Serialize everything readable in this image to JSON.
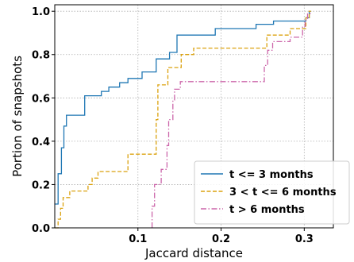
{
  "chart_data": {
    "type": "line",
    "xlabel": "Jaccard distance",
    "ylabel": "Portion of snapshots",
    "xlim": [
      0.0,
      0.335
    ],
    "ylim": [
      0.0,
      1.03
    ],
    "xticks": [
      {
        "value": 0.1,
        "label": "0.1"
      },
      {
        "value": 0.2,
        "label": "0.2"
      },
      {
        "value": 0.3,
        "label": "0.3"
      }
    ],
    "yticks": [
      {
        "value": 0.0,
        "label": "0.0"
      },
      {
        "value": 0.2,
        "label": "0.2"
      },
      {
        "value": 0.4,
        "label": "0.4"
      },
      {
        "value": 0.6,
        "label": "0.6"
      },
      {
        "value": 0.8,
        "label": "0.8"
      },
      {
        "value": 1.0,
        "label": "1.0"
      }
    ],
    "grid": true,
    "legend_position": "bottom-right",
    "series": [
      {
        "name": "t <= 3 months",
        "color": "#1f77b4",
        "style": "solid",
        "points": [
          [
            0.0,
            0.11
          ],
          [
            0.004,
            0.11
          ],
          [
            0.004,
            0.25
          ],
          [
            0.008,
            0.25
          ],
          [
            0.008,
            0.37
          ],
          [
            0.011,
            0.37
          ],
          [
            0.011,
            0.47
          ],
          [
            0.014,
            0.47
          ],
          [
            0.014,
            0.52
          ],
          [
            0.036,
            0.52
          ],
          [
            0.036,
            0.61
          ],
          [
            0.056,
            0.61
          ],
          [
            0.056,
            0.63
          ],
          [
            0.065,
            0.63
          ],
          [
            0.065,
            0.65
          ],
          [
            0.078,
            0.65
          ],
          [
            0.078,
            0.67
          ],
          [
            0.088,
            0.67
          ],
          [
            0.088,
            0.69
          ],
          [
            0.105,
            0.69
          ],
          [
            0.105,
            0.72
          ],
          [
            0.122,
            0.72
          ],
          [
            0.122,
            0.78
          ],
          [
            0.138,
            0.78
          ],
          [
            0.138,
            0.81
          ],
          [
            0.147,
            0.81
          ],
          [
            0.147,
            0.89
          ],
          [
            0.193,
            0.89
          ],
          [
            0.193,
            0.92
          ],
          [
            0.242,
            0.92
          ],
          [
            0.242,
            0.94
          ],
          [
            0.263,
            0.94
          ],
          [
            0.263,
            0.955
          ],
          [
            0.302,
            0.955
          ],
          [
            0.302,
            0.97
          ],
          [
            0.306,
            0.97
          ],
          [
            0.306,
            1.0
          ],
          [
            0.308,
            1.0
          ]
        ]
      },
      {
        "name": "3 < t <= 6 months",
        "color": "#dba20f",
        "style": "dashed",
        "points": [
          [
            0.0,
            0.0
          ],
          [
            0.004,
            0.0
          ],
          [
            0.004,
            0.04
          ],
          [
            0.007,
            0.04
          ],
          [
            0.007,
            0.09
          ],
          [
            0.01,
            0.09
          ],
          [
            0.01,
            0.14
          ],
          [
            0.018,
            0.14
          ],
          [
            0.018,
            0.17
          ],
          [
            0.04,
            0.17
          ],
          [
            0.04,
            0.2
          ],
          [
            0.045,
            0.2
          ],
          [
            0.045,
            0.23
          ],
          [
            0.052,
            0.23
          ],
          [
            0.052,
            0.26
          ],
          [
            0.088,
            0.26
          ],
          [
            0.088,
            0.34
          ],
          [
            0.122,
            0.34
          ],
          [
            0.122,
            0.5
          ],
          [
            0.124,
            0.5
          ],
          [
            0.124,
            0.66
          ],
          [
            0.136,
            0.66
          ],
          [
            0.136,
            0.74
          ],
          [
            0.152,
            0.74
          ],
          [
            0.152,
            0.8
          ],
          [
            0.167,
            0.8
          ],
          [
            0.167,
            0.83
          ],
          [
            0.255,
            0.83
          ],
          [
            0.255,
            0.89
          ],
          [
            0.283,
            0.89
          ],
          [
            0.283,
            0.92
          ],
          [
            0.302,
            0.92
          ],
          [
            0.302,
            0.97
          ],
          [
            0.306,
            0.97
          ],
          [
            0.306,
            1.0
          ],
          [
            0.308,
            1.0
          ]
        ]
      },
      {
        "name": "t > 6 months",
        "color": "#cc66aa",
        "style": "dashdot",
        "points": [
          [
            0.117,
            0.0
          ],
          [
            0.117,
            0.1
          ],
          [
            0.12,
            0.1
          ],
          [
            0.12,
            0.2
          ],
          [
            0.128,
            0.2
          ],
          [
            0.128,
            0.27
          ],
          [
            0.135,
            0.27
          ],
          [
            0.135,
            0.38
          ],
          [
            0.137,
            0.38
          ],
          [
            0.137,
            0.5
          ],
          [
            0.142,
            0.5
          ],
          [
            0.142,
            0.59
          ],
          [
            0.144,
            0.59
          ],
          [
            0.144,
            0.64
          ],
          [
            0.151,
            0.64
          ],
          [
            0.151,
            0.675
          ],
          [
            0.252,
            0.675
          ],
          [
            0.252,
            0.75
          ],
          [
            0.256,
            0.75
          ],
          [
            0.256,
            0.82
          ],
          [
            0.262,
            0.82
          ],
          [
            0.262,
            0.86
          ],
          [
            0.283,
            0.86
          ],
          [
            0.283,
            0.88
          ],
          [
            0.298,
            0.88
          ],
          [
            0.298,
            0.93
          ],
          [
            0.301,
            0.93
          ],
          [
            0.301,
            0.96
          ],
          [
            0.304,
            0.96
          ],
          [
            0.304,
            0.99
          ],
          [
            0.308,
            0.99
          ]
        ]
      }
    ]
  }
}
